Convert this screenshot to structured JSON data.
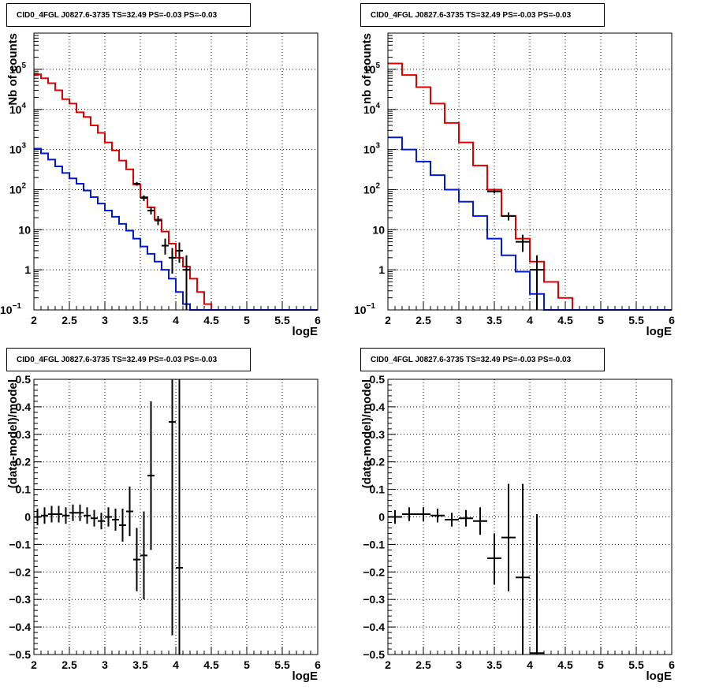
{
  "chart_data": [
    {
      "type": "line",
      "title": "CID0_4FGL J0827.6-3735 TS=32.49 PS=-0.03 PS=-0.03",
      "xlabel": "logE",
      "ylabel": "Nb of counts",
      "log_y": true,
      "xlim": [
        2,
        6
      ],
      "ylim": [
        0.1,
        800000
      ],
      "grid": true,
      "x_ticks": [
        "2",
        "2.5",
        "3",
        "3.5",
        "4",
        "4.5",
        "5",
        "5.5",
        "6"
      ],
      "y_ticks": [
        {
          "v": 0.1,
          "label": "10",
          "sup": "−1"
        },
        {
          "v": 1,
          "label": "1",
          "sup": ""
        },
        {
          "v": 10,
          "label": "10",
          "sup": ""
        },
        {
          "v": 100,
          "label": "10",
          "sup": "2"
        },
        {
          "v": 1000,
          "label": "10",
          "sup": "3"
        },
        {
          "v": 10000,
          "label": "10",
          "sup": "4"
        },
        {
          "v": 100000,
          "label": "10",
          "sup": "5"
        }
      ],
      "bin_edges": [
        2.0,
        2.1,
        2.2,
        2.3,
        2.4,
        2.5,
        2.6,
        2.7,
        2.8,
        2.9,
        3.0,
        3.1,
        3.2,
        3.3,
        3.4,
        3.5,
        3.6,
        3.7,
        3.8,
        3.9,
        4.0,
        4.1,
        4.2,
        4.3,
        4.4,
        4.5,
        4.6,
        4.7,
        4.8,
        4.9,
        5.0,
        5.1,
        5.2,
        5.3,
        5.4,
        5.5,
        5.6,
        5.7,
        5.8,
        5.9,
        6.0
      ],
      "series": [
        {
          "color": "#e00000",
          "values": [
            75000,
            60000,
            45000,
            30000,
            18000,
            14000,
            8500,
            6500,
            4000,
            2600,
            1500,
            950,
            530,
            320,
            135,
            65,
            36,
            18,
            9,
            4.5,
            2,
            1.2,
            0.6,
            0.28,
            0.14,
            0.1,
            0.1,
            0.1,
            0.1,
            0.1,
            0.1,
            0.1,
            0.1,
            0.1,
            0.1,
            0.1,
            0.1,
            0.1,
            0.1,
            0.1
          ]
        },
        {
          "color": "#0018d8",
          "values": [
            1050,
            800,
            560,
            380,
            260,
            190,
            140,
            95,
            65,
            45,
            30,
            21,
            14,
            9.5,
            6,
            3.8,
            2.5,
            1.6,
            1,
            0.6,
            0.28,
            0.14,
            0.1,
            0.1,
            0.1,
            0.1,
            0.1,
            0.1,
            0.1,
            0.1,
            0.1,
            0.1,
            0.1,
            0.1,
            0.1,
            0.1,
            0.1,
            0.1,
            0.1,
            0.1
          ]
        }
      ],
      "points": [
        {
          "x": 3.45,
          "y": 140,
          "lo": 125,
          "hi": 155
        },
        {
          "x": 3.55,
          "y": 62,
          "lo": 52,
          "hi": 72
        },
        {
          "x": 3.65,
          "y": 30,
          "lo": 24,
          "hi": 37
        },
        {
          "x": 3.75,
          "y": 17,
          "lo": 13,
          "hi": 22
        },
        {
          "x": 3.85,
          "y": 4,
          "lo": 2.4,
          "hi": 6
        },
        {
          "x": 3.95,
          "y": 2,
          "lo": 0.8,
          "hi": 3.5
        },
        {
          "x": 4.05,
          "y": 3,
          "lo": 1.5,
          "hi": 4.8
        },
        {
          "x": 4.15,
          "y": 1,
          "lo": 0.1,
          "hi": 2.3
        }
      ]
    },
    {
      "type": "line",
      "title": "CID0_4FGL J0827.6-3735 TS=32.49 PS=-0.03 PS=-0.03",
      "xlabel": "logE",
      "ylabel": "nb of counts",
      "log_y": true,
      "xlim": [
        2,
        6
      ],
      "ylim": [
        0.1,
        800000
      ],
      "grid": true,
      "x_ticks": [
        "2",
        "2.5",
        "3",
        "3.5",
        "4",
        "4.5",
        "5",
        "5.5",
        "6"
      ],
      "y_ticks": [
        {
          "v": 0.1,
          "label": "10",
          "sup": "−1"
        },
        {
          "v": 1,
          "label": "1",
          "sup": ""
        },
        {
          "v": 10,
          "label": "10",
          "sup": ""
        },
        {
          "v": 100,
          "label": "10",
          "sup": "2"
        },
        {
          "v": 1000,
          "label": "10",
          "sup": "3"
        },
        {
          "v": 10000,
          "label": "10",
          "sup": "4"
        },
        {
          "v": 100000,
          "label": "10",
          "sup": "5"
        }
      ],
      "bin_edges": [
        2.0,
        2.2,
        2.4,
        2.6,
        2.8,
        3.0,
        3.2,
        3.4,
        3.6,
        3.8,
        4.0,
        4.2,
        4.4,
        4.6,
        4.8,
        5.0,
        5.2,
        5.4,
        5.6,
        5.8,
        6.0
      ],
      "series": [
        {
          "color": "#e00000",
          "values": [
            140000,
            72000,
            36000,
            14000,
            4600,
            1500,
            400,
            100,
            22,
            6,
            1.6,
            0.5,
            0.2,
            0.1,
            0.1,
            0.1,
            0.1,
            0.1,
            0.1,
            0.1
          ]
        },
        {
          "color": "#0018d8",
          "values": [
            2000,
            1000,
            500,
            230,
            100,
            50,
            22,
            6,
            2.3,
            0.9,
            0.25,
            0.1,
            0.1,
            0.1,
            0.1,
            0.1,
            0.1,
            0.1,
            0.1,
            0.1
          ]
        }
      ],
      "points": [
        {
          "x": 3.5,
          "y": 90,
          "lo": 80,
          "hi": 100
        },
        {
          "x": 3.7,
          "y": 22,
          "lo": 17,
          "hi": 27
        },
        {
          "x": 3.9,
          "y": 5,
          "lo": 2.8,
          "hi": 7.5
        },
        {
          "x": 4.1,
          "y": 1,
          "lo": 0.1,
          "hi": 2.3
        }
      ]
    },
    {
      "type": "scatter",
      "title": "CID0_4FGL J0827.6-3735 TS=32.49 PS=-0.03 PS=-0.03",
      "xlabel": "logE",
      "ylabel": "(data-model)/model",
      "log_y": false,
      "xlim": [
        2,
        6
      ],
      "ylim": [
        -0.5,
        0.5
      ],
      "grid": true,
      "x_ticks": [
        "2",
        "2.5",
        "3",
        "3.5",
        "4",
        "4.5",
        "5",
        "5.5",
        "6"
      ],
      "y_ticks": [
        {
          "v": -0.5,
          "label": "−0.5"
        },
        {
          "v": -0.4,
          "label": "−0.4"
        },
        {
          "v": -0.3,
          "label": "−0.3"
        },
        {
          "v": -0.2,
          "label": "−0.2"
        },
        {
          "v": -0.1,
          "label": "−0.1"
        },
        {
          "v": 0,
          "label": "0"
        },
        {
          "v": 0.1,
          "label": "0.1"
        },
        {
          "v": 0.2,
          "label": "0.2"
        },
        {
          "v": 0.3,
          "label": "0.3"
        },
        {
          "v": 0.4,
          "label": "0.4"
        },
        {
          "v": 0.5,
          "label": "0.5"
        }
      ],
      "xerr": 0.05,
      "points": [
        {
          "x": 2.05,
          "y": 0.0,
          "lo": -0.03,
          "hi": 0.03
        },
        {
          "x": 2.15,
          "y": 0.005,
          "lo": -0.025,
          "hi": 0.035
        },
        {
          "x": 2.25,
          "y": 0.01,
          "lo": -0.02,
          "hi": 0.04
        },
        {
          "x": 2.35,
          "y": 0.01,
          "lo": -0.02,
          "hi": 0.04
        },
        {
          "x": 2.45,
          "y": 0.005,
          "lo": -0.025,
          "hi": 0.035
        },
        {
          "x": 2.55,
          "y": 0.015,
          "lo": -0.015,
          "hi": 0.045
        },
        {
          "x": 2.65,
          "y": 0.015,
          "lo": -0.015,
          "hi": 0.045
        },
        {
          "x": 2.75,
          "y": 0.005,
          "lo": -0.025,
          "hi": 0.035
        },
        {
          "x": 2.85,
          "y": -0.005,
          "lo": -0.035,
          "hi": 0.025
        },
        {
          "x": 2.95,
          "y": -0.015,
          "lo": -0.045,
          "hi": 0.015
        },
        {
          "x": 3.05,
          "y": 0.0,
          "lo": -0.035,
          "hi": 0.035
        },
        {
          "x": 3.15,
          "y": -0.01,
          "lo": -0.05,
          "hi": 0.03
        },
        {
          "x": 3.25,
          "y": -0.03,
          "lo": -0.09,
          "hi": 0.03
        },
        {
          "x": 3.35,
          "y": 0.02,
          "lo": -0.07,
          "hi": 0.11
        },
        {
          "x": 3.45,
          "y": -0.155,
          "lo": -0.27,
          "hi": -0.04
        },
        {
          "x": 3.55,
          "y": -0.14,
          "lo": -0.3,
          "hi": 0.02
        },
        {
          "x": 3.65,
          "y": 0.15,
          "lo": -0.12,
          "hi": 0.42
        },
        {
          "x": 3.95,
          "y": 0.345,
          "lo": -0.43,
          "hi": 0.5
        },
        {
          "x": 4.05,
          "y": -0.185,
          "lo": -0.5,
          "hi": 0.5
        }
      ]
    },
    {
      "type": "scatter",
      "title": "CID0_4FGL J0827.6-3735 TS=32.49 PS=-0.03 PS=-0.03",
      "xlabel": "logE",
      "ylabel": "(data-model)/model",
      "log_y": false,
      "xlim": [
        2,
        6
      ],
      "ylim": [
        -0.5,
        0.5
      ],
      "grid": true,
      "x_ticks": [
        "2",
        "2.5",
        "3",
        "3.5",
        "4",
        "4.5",
        "5",
        "5.5",
        "6"
      ],
      "y_ticks": [
        {
          "v": -0.5,
          "label": "−0.5"
        },
        {
          "v": -0.4,
          "label": "−0.4"
        },
        {
          "v": -0.3,
          "label": "−0.3"
        },
        {
          "v": -0.2,
          "label": "−0.2"
        },
        {
          "v": -0.1,
          "label": "−0.1"
        },
        {
          "v": 0,
          "label": "0"
        },
        {
          "v": 0.1,
          "label": "0.1"
        },
        {
          "v": 0.2,
          "label": "0.2"
        },
        {
          "v": 0.3,
          "label": "0.3"
        },
        {
          "v": 0.4,
          "label": "0.4"
        },
        {
          "v": 0.5,
          "label": "0.5"
        }
      ],
      "xerr": 0.1,
      "points": [
        {
          "x": 2.1,
          "y": 0.0,
          "lo": -0.025,
          "hi": 0.025
        },
        {
          "x": 2.3,
          "y": 0.01,
          "lo": -0.015,
          "hi": 0.035
        },
        {
          "x": 2.5,
          "y": 0.01,
          "lo": -0.015,
          "hi": 0.035
        },
        {
          "x": 2.7,
          "y": 0.005,
          "lo": -0.02,
          "hi": 0.03
        },
        {
          "x": 2.9,
          "y": -0.01,
          "lo": -0.035,
          "hi": 0.015
        },
        {
          "x": 3.1,
          "y": -0.005,
          "lo": -0.035,
          "hi": 0.025
        },
        {
          "x": 3.3,
          "y": -0.015,
          "lo": -0.065,
          "hi": 0.035
        },
        {
          "x": 3.5,
          "y": -0.15,
          "lo": -0.245,
          "hi": -0.06
        },
        {
          "x": 3.7,
          "y": -0.075,
          "lo": -0.27,
          "hi": 0.12
        },
        {
          "x": 3.9,
          "y": -0.22,
          "lo": -0.5,
          "hi": 0.12
        },
        {
          "x": 4.1,
          "y": -0.495,
          "lo": -0.5,
          "hi": 0.01
        }
      ]
    }
  ]
}
